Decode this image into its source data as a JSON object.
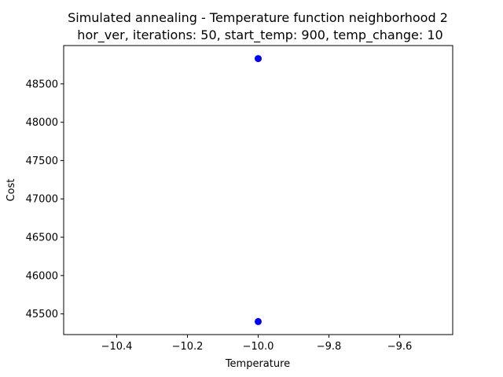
{
  "chart_data": {
    "type": "scatter",
    "title_line1": "Simulated annealing - Temperature function neighborhood 2",
    "title_line2": "hor_ver, iterations: 50, start_temp: 900, temp_change: 10",
    "xlabel": "Temperature",
    "ylabel": "Cost",
    "xlim": [
      -10.55,
      -9.45
    ],
    "ylim": [
      45230,
      49000
    ],
    "x_ticks": [
      -10.4,
      -10.2,
      -10.0,
      -9.8,
      -9.6
    ],
    "x_tick_labels": [
      "−10.4",
      "−10.2",
      "−10.0",
      "−9.8",
      "−9.6"
    ],
    "y_ticks": [
      45500,
      46000,
      46500,
      47000,
      47500,
      48000,
      48500
    ],
    "y_tick_labels": [
      "45500",
      "46000",
      "46500",
      "47000",
      "47500",
      "48000",
      "48500"
    ],
    "grid": false,
    "point_color": "#0000ff",
    "series": [
      {
        "x": [
          -10.0,
          -10.0
        ],
        "y": [
          48830,
          45400
        ]
      }
    ]
  }
}
